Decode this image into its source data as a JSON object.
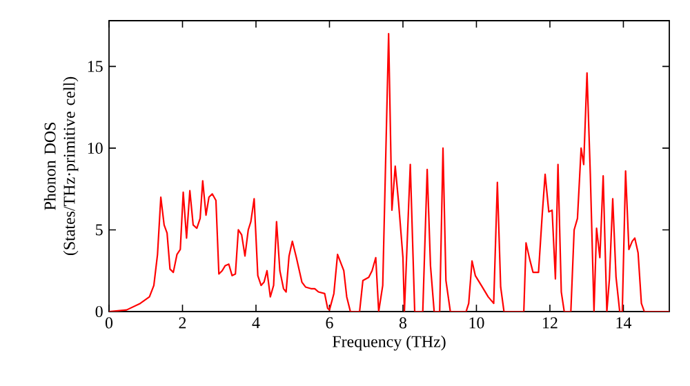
{
  "chart_data": {
    "type": "line",
    "xlabel": "Frequency (THz)",
    "ylabel": "Phonon DOS (States/THz·primitive cell)",
    "xlim": [
      0,
      15.25
    ],
    "ylim": [
      0,
      17.8
    ],
    "xticks": [
      0,
      2,
      4,
      6,
      8,
      10,
      12,
      14
    ],
    "yticks": [
      0,
      5,
      10,
      15
    ],
    "marker": "none",
    "line_style": "solid",
    "series": [
      {
        "color": "#ff0000",
        "x": [
          0,
          0.48,
          0.85,
          1.1,
          1.22,
          1.32,
          1.41,
          1.5,
          1.58,
          1.66,
          1.75,
          1.85,
          1.94,
          2.02,
          2.11,
          2.2,
          2.29,
          2.39,
          2.48,
          2.55,
          2.64,
          2.72,
          2.81,
          2.91,
          2.99,
          3.08,
          3.16,
          3.26,
          3.35,
          3.44,
          3.52,
          3.61,
          3.7,
          3.79,
          3.86,
          3.95,
          4.05,
          4.14,
          4.22,
          4.3,
          4.39,
          4.48,
          4.56,
          4.65,
          4.75,
          4.82,
          4.9,
          4.99,
          5.1,
          5.25,
          5.35,
          5.5,
          5.6,
          5.7,
          5.87,
          5.95,
          6.0,
          6.12,
          6.22,
          6.39,
          6.47,
          6.57,
          6.82,
          6.91,
          7.07,
          7.16,
          7.26,
          7.34,
          7.45,
          7.61,
          7.7,
          7.79,
          7.88,
          8.0,
          8.04,
          8.2,
          8.32,
          8.54,
          8.66,
          8.75,
          8.85,
          9.0,
          9.09,
          9.17,
          9.29,
          9.72,
          9.79,
          9.88,
          9.97,
          10.16,
          10.32,
          10.47,
          10.57,
          10.66,
          10.75,
          11.29,
          11.35,
          11.45,
          11.54,
          11.69,
          11.79,
          11.87,
          11.97,
          12.06,
          12.15,
          12.22,
          12.31,
          12.39,
          12.57,
          12.66,
          12.75,
          12.85,
          12.92,
          13.01,
          13.1,
          13.2,
          13.27,
          13.36,
          13.45,
          13.55,
          13.62,
          13.71,
          13.8,
          13.9,
          13.97,
          14.06,
          14.15,
          14.24,
          14.31,
          14.4,
          14.49,
          14.57,
          15.25
        ],
        "values": [
          0,
          0.1,
          0.5,
          0.9,
          1.6,
          3.5,
          7.0,
          5.3,
          4.8,
          2.6,
          2.4,
          3.5,
          3.8,
          7.3,
          4.5,
          7.4,
          5.3,
          5.1,
          5.7,
          8.0,
          5.9,
          7.0,
          7.2,
          6.8,
          2.3,
          2.5,
          2.8,
          2.9,
          2.2,
          2.3,
          5.0,
          4.7,
          3.4,
          5.0,
          5.5,
          6.9,
          2.2,
          1.6,
          1.8,
          2.5,
          0.9,
          1.6,
          5.5,
          2.5,
          1.4,
          1.2,
          3.4,
          4.3,
          3.3,
          1.8,
          1.5,
          1.4,
          1.4,
          1.2,
          1.1,
          0.2,
          0.1,
          1.1,
          3.5,
          2.5,
          0.9,
          0,
          0,
          1.9,
          2.1,
          2.5,
          3.3,
          0,
          1.6,
          17.0,
          6.2,
          8.9,
          6.7,
          3.3,
          0,
          9.0,
          0,
          0,
          8.7,
          2.8,
          0,
          0,
          10.0,
          1.9,
          0,
          0,
          0.5,
          3.1,
          2.2,
          1.5,
          0.9,
          0.5,
          7.9,
          1.5,
          0,
          0,
          4.2,
          3.2,
          2.4,
          2.4,
          5.9,
          8.4,
          6.1,
          6.2,
          2.0,
          9.0,
          1.2,
          0,
          0,
          5.0,
          5.7,
          10.0,
          9.0,
          14.6,
          8.4,
          0,
          5.1,
          3.3,
          8.3,
          0,
          2.0,
          6.9,
          2.1,
          0,
          0,
          8.6,
          3.8,
          4.3,
          4.5,
          3.6,
          0.5,
          0,
          0
        ]
      }
    ]
  }
}
